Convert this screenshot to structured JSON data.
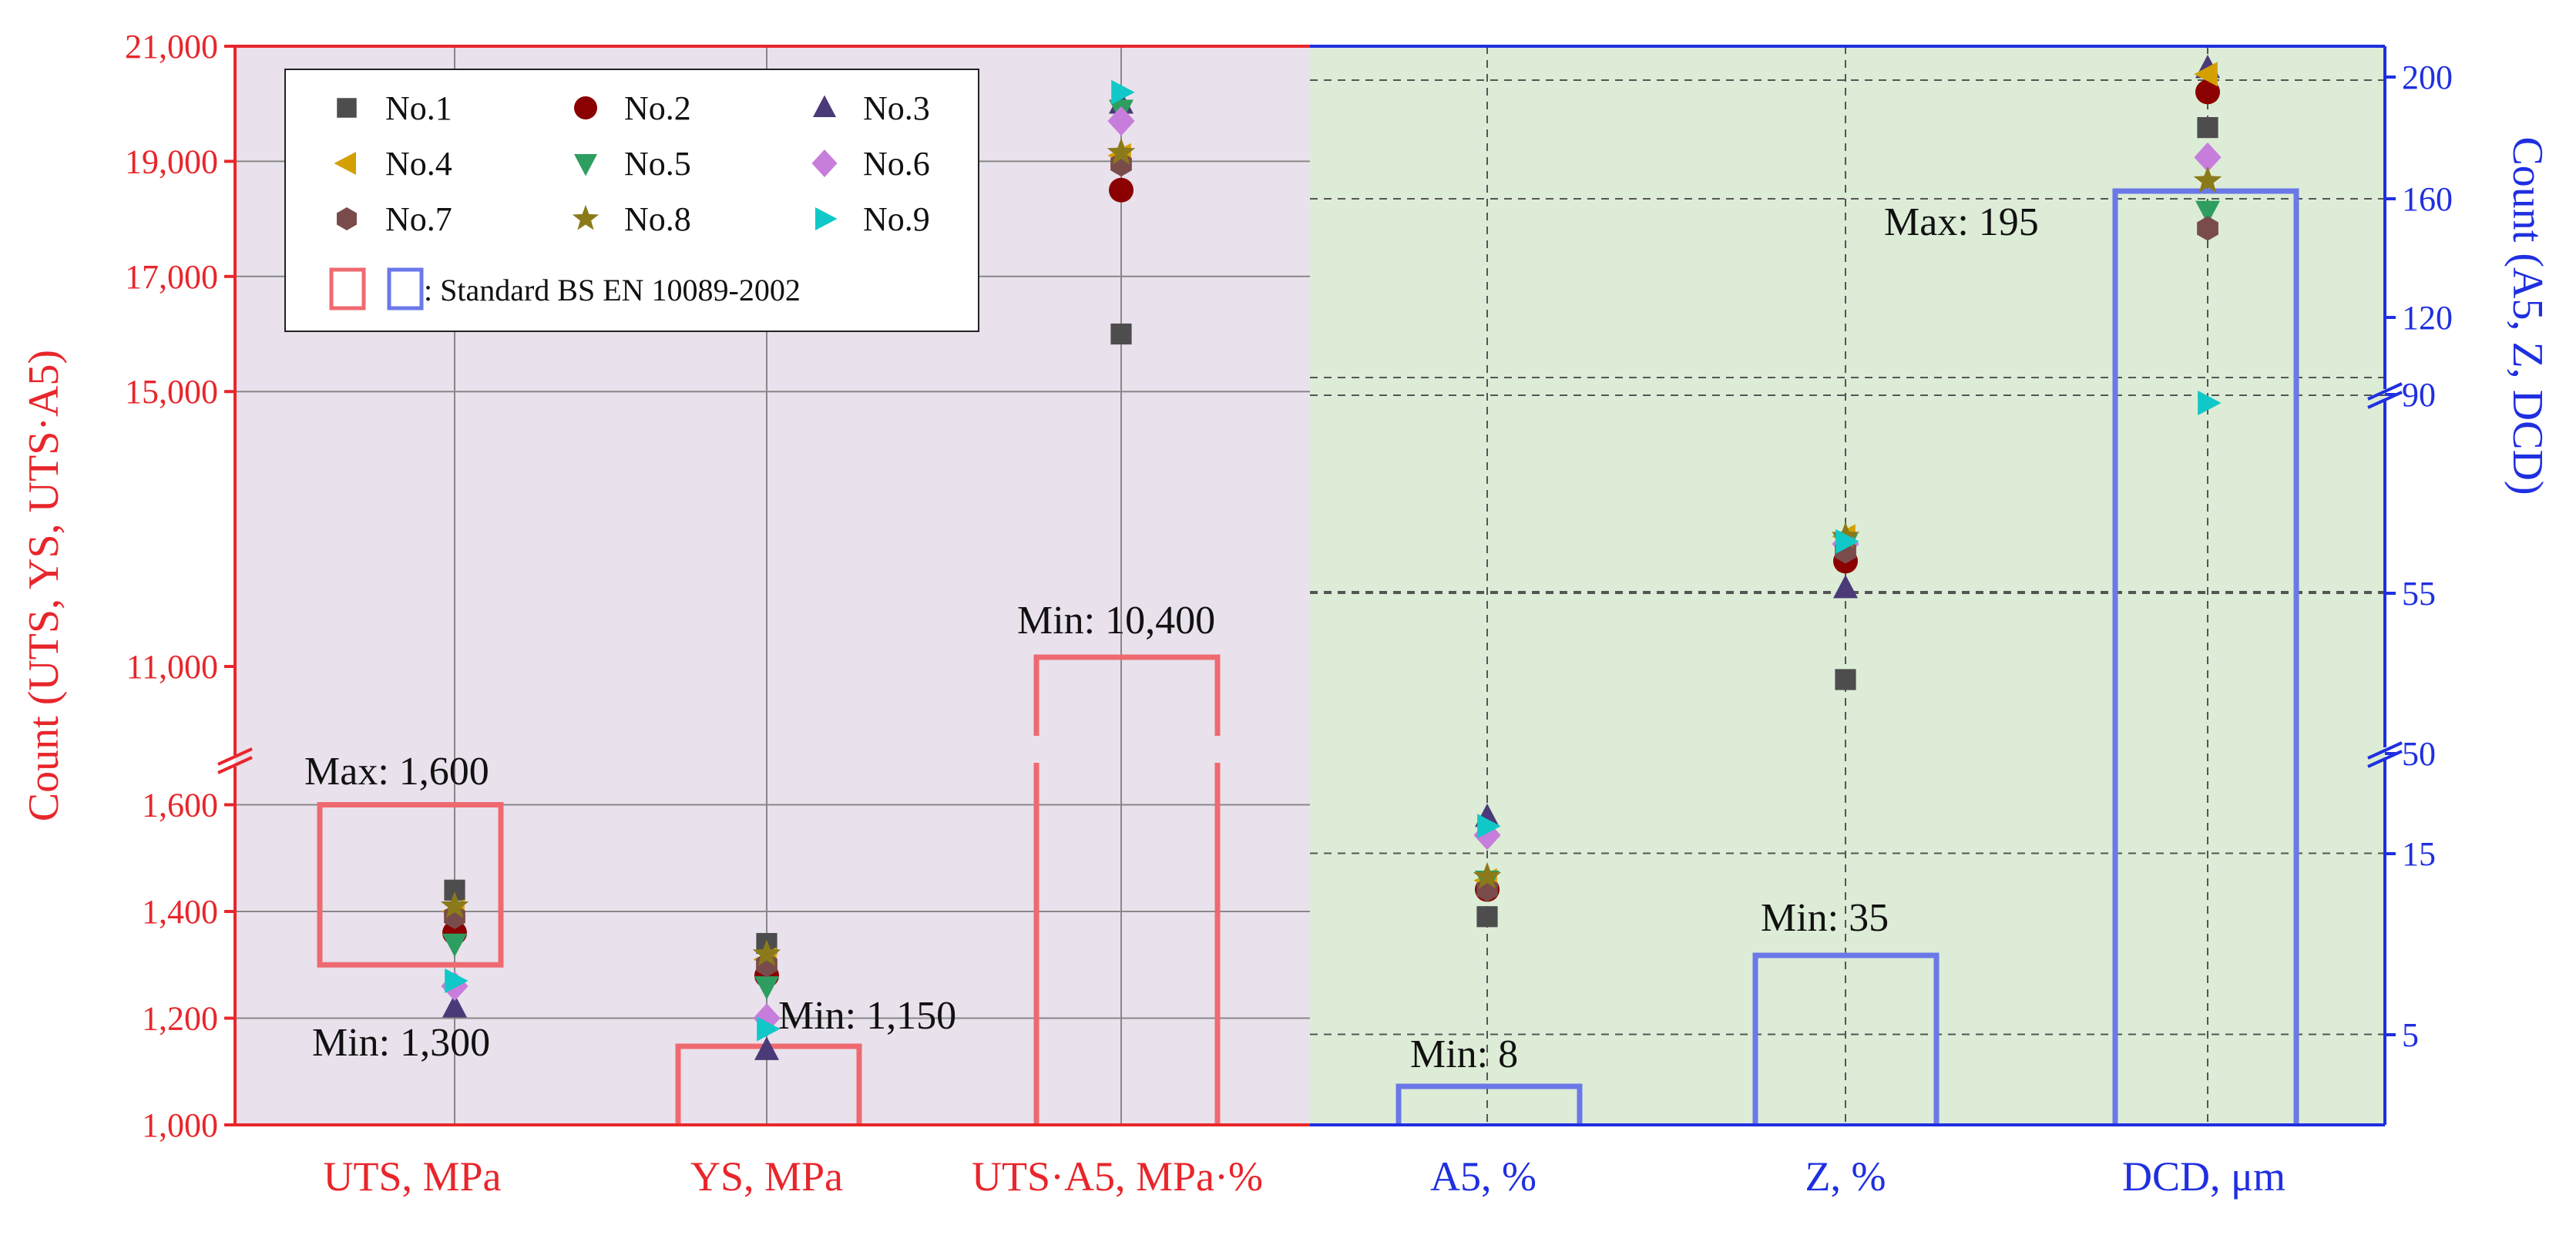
{
  "chart_data": {
    "type": "scatter",
    "left_axis_title": "Count (UTS, YS, UTS·A5)",
    "right_axis_title": "Count (A5, Z, DCD)",
    "categories": [
      {
        "key": "uts",
        "label": "UTS, MPa",
        "side": "left"
      },
      {
        "key": "ys",
        "label": "YS, MPa",
        "side": "left"
      },
      {
        "key": "utsa5",
        "label": "UTS·A5, MPa·%",
        "side": "left"
      },
      {
        "key": "a5",
        "label": "A5, %",
        "side": "right"
      },
      {
        "key": "z",
        "label": "Z, %",
        "side": "right"
      },
      {
        "key": "dcd",
        "label": "DCD, μm",
        "side": "right"
      }
    ],
    "left_axis": {
      "lower_ticks": [
        "1,000",
        "1,200",
        "1,400",
        "1,600"
      ],
      "lower_range": [
        1000,
        1600
      ],
      "upper_ticks": [
        "11,000",
        "15,000",
        "17,000",
        "19,000",
        "21,000"
      ],
      "upper_range": [
        11000,
        21000
      ]
    },
    "right_axis": {
      "ticks": [
        "5",
        "15",
        "50",
        "55",
        "90",
        "120",
        "160",
        "200"
      ],
      "segments": [
        {
          "range": [
            0,
            20
          ]
        },
        {
          "range": [
            45,
            65
          ]
        },
        {
          "range": [
            90,
            210
          ]
        }
      ]
    },
    "series": [
      {
        "name": "No.1",
        "marker": "square",
        "color": "#4d4d4d",
        "values": [
          1440,
          1340,
          16000,
          11.5,
          51.5,
          184
        ]
      },
      {
        "name": "No.2",
        "marker": "circle",
        "color": "#8b0000",
        "values": [
          1360,
          1280,
          18500,
          13,
          56.3,
          196
        ]
      },
      {
        "name": "No.3",
        "marker": "triangle-up",
        "color": "#4b3a78",
        "values": [
          1220,
          1140,
          20000,
          17,
          55.2,
          204
        ]
      },
      {
        "name": "No.4",
        "marker": "triangle-left",
        "color": "#d4a000",
        "values": [
          1400,
          1310,
          19100,
          13.5,
          57.3,
          202
        ]
      },
      {
        "name": "No.5",
        "marker": "triangle-down",
        "color": "#2e9e60",
        "values": [
          1340,
          1260,
          19900,
          13.5,
          57.0,
          156
        ]
      },
      {
        "name": "No.6",
        "marker": "diamond",
        "color": "#c77ddb",
        "values": [
          1260,
          1200,
          19700,
          16,
          57.0,
          174
        ]
      },
      {
        "name": "No.7",
        "marker": "hexagon",
        "color": "#7a4b4b",
        "values": [
          1390,
          1300,
          18950,
          13,
          56.7,
          150
        ]
      },
      {
        "name": "No.8",
        "marker": "star",
        "color": "#8a7a1a",
        "values": [
          1410,
          1320,
          19150,
          13.7,
          57.3,
          166
        ]
      },
      {
        "name": "No.9",
        "marker": "triangle-right",
        "color": "#10c8c8",
        "values": [
          1270,
          1180,
          20200,
          16.5,
          57.1,
          90
        ]
      }
    ],
    "standard_label": ": Standard BS EN 10089-2002",
    "standards": [
      {
        "key": "uts_box",
        "annot_max": "Max: 1,600",
        "annot_min": "Min: 1,300"
      },
      {
        "key": "ys_box",
        "annot_min": "Min: 1,150"
      },
      {
        "key": "utsa5_box",
        "annot_min": "Min: 10,400"
      },
      {
        "key": "a5_box",
        "annot_min": "Min: 8"
      },
      {
        "key": "z_box",
        "annot_min": "Min: 35"
      },
      {
        "key": "dcd_box",
        "annot_max": "Max: 195"
      }
    ],
    "colors": {
      "left_bg": "#e9e1ec",
      "right_bg": "#dcecd6",
      "left_axis": "#e8262b",
      "right_axis": "#1f2fe0",
      "left_box": "#ee6a70",
      "right_box": "#6a78e8"
    }
  }
}
